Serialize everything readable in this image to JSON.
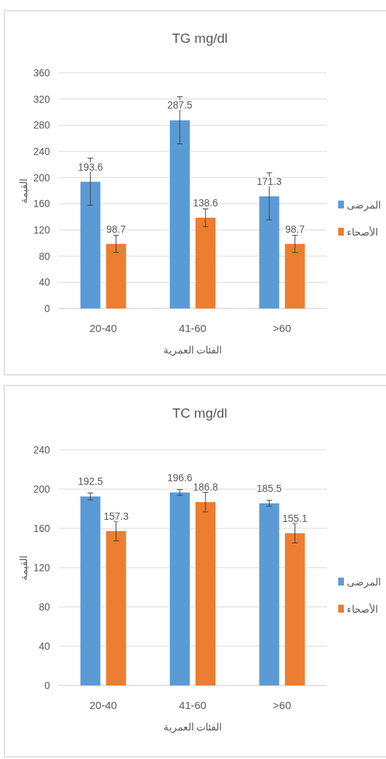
{
  "chart_data": [
    {
      "type": "bar",
      "title": "TG mg/dl",
      "xlabel": "الفئات العمرية",
      "ylabel": "القيمة",
      "categories": [
        "20-40",
        "41-60",
        ">60"
      ],
      "ylim": [
        0,
        360
      ],
      "yticks": [
        0,
        40,
        80,
        120,
        160,
        200,
        240,
        280,
        320,
        360
      ],
      "grid": "y",
      "legend": "right",
      "data_labels": true,
      "series": [
        {
          "name": "المرضى",
          "color": "#5b9bd5",
          "values": [
            193.6,
            287.5,
            171.3
          ],
          "errors": [
            36,
            36,
            36
          ]
        },
        {
          "name": "الأصحاء",
          "color": "#ed7d31",
          "values": [
            98.7,
            138.6,
            98.7
          ],
          "errors": [
            13,
            13.5,
            13
          ]
        }
      ]
    },
    {
      "type": "bar",
      "title": "TC mg/dl",
      "xlabel": "الفئات العمرية",
      "ylabel": "القيمة",
      "categories": [
        "20-40",
        "41-60",
        ">60"
      ],
      "ylim": [
        0,
        240
      ],
      "yticks": [
        0,
        40,
        80,
        120,
        160,
        200,
        240
      ],
      "grid": "y",
      "legend": "right",
      "data_labels": true,
      "series": [
        {
          "name": "المرضى",
          "color": "#5b9bd5",
          "values": [
            192.5,
            196.6,
            185.5
          ],
          "errors": [
            3.5,
            3,
            3
          ]
        },
        {
          "name": "الأصحاء",
          "color": "#ed7d31",
          "values": [
            157.3,
            186.8,
            155.1
          ],
          "errors": [
            10,
            10,
            10
          ]
        }
      ]
    }
  ]
}
